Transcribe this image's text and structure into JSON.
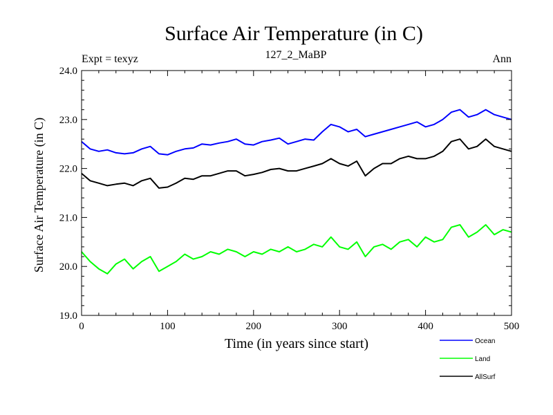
{
  "chart_data": {
    "type": "line",
    "title": "Surface Air Temperature (in C)",
    "subtitle": "127_2_MaBP",
    "left_label": "Expt = texyz",
    "right_label": "Ann",
    "xlabel": "Time (in years since start)",
    "ylabel": "Surface Air Temperature (in C)",
    "xlim": [
      0,
      500
    ],
    "ylim": [
      19.0,
      24.0
    ],
    "x_ticks": [
      0,
      100,
      200,
      300,
      400,
      500
    ],
    "y_ticks": [
      "19.0",
      "20.0",
      "21.0",
      "22.0",
      "23.0",
      "24.0"
    ],
    "grid": false,
    "legend_position": "bottom-right",
    "series": [
      {
        "name": "Ocean",
        "color": "#0000ff",
        "x": [
          0,
          10,
          20,
          30,
          40,
          50,
          60,
          70,
          80,
          90,
          100,
          110,
          120,
          130,
          140,
          150,
          160,
          170,
          180,
          190,
          200,
          210,
          220,
          230,
          240,
          250,
          260,
          270,
          280,
          290,
          300,
          310,
          320,
          330,
          340,
          350,
          360,
          370,
          380,
          390,
          400,
          410,
          420,
          430,
          440,
          450,
          460,
          470,
          480,
          490,
          500
        ],
        "y": [
          22.55,
          22.4,
          22.35,
          22.38,
          22.32,
          22.3,
          22.32,
          22.4,
          22.45,
          22.3,
          22.28,
          22.35,
          22.4,
          22.42,
          22.5,
          22.48,
          22.52,
          22.55,
          22.6,
          22.5,
          22.48,
          22.55,
          22.58,
          22.62,
          22.5,
          22.55,
          22.6,
          22.58,
          22.75,
          22.9,
          22.85,
          22.75,
          22.8,
          22.65,
          22.7,
          22.75,
          22.8,
          22.85,
          22.9,
          22.95,
          22.85,
          22.9,
          23.0,
          23.15,
          23.2,
          23.05,
          23.1,
          23.2,
          23.1,
          23.05,
          23.0
        ]
      },
      {
        "name": "Land",
        "color": "#00ff00",
        "x": [
          0,
          10,
          20,
          30,
          40,
          50,
          60,
          70,
          80,
          90,
          100,
          110,
          120,
          130,
          140,
          150,
          160,
          170,
          180,
          190,
          200,
          210,
          220,
          230,
          240,
          250,
          260,
          270,
          280,
          290,
          300,
          310,
          320,
          330,
          340,
          350,
          360,
          370,
          380,
          390,
          400,
          410,
          420,
          430,
          440,
          450,
          460,
          470,
          480,
          490,
          500
        ],
        "y": [
          20.3,
          20.1,
          19.95,
          19.85,
          20.05,
          20.15,
          19.95,
          20.1,
          20.2,
          19.9,
          20.0,
          20.1,
          20.25,
          20.15,
          20.2,
          20.3,
          20.25,
          20.35,
          20.3,
          20.2,
          20.3,
          20.25,
          20.35,
          20.3,
          20.4,
          20.3,
          20.35,
          20.45,
          20.4,
          20.6,
          20.4,
          20.35,
          20.5,
          20.2,
          20.4,
          20.45,
          20.35,
          20.5,
          20.55,
          20.4,
          20.6,
          20.5,
          20.55,
          20.8,
          20.85,
          20.6,
          20.7,
          20.85,
          20.65,
          20.75,
          20.7
        ]
      },
      {
        "name": "AllSurf",
        "color": "#000000",
        "x": [
          0,
          10,
          20,
          30,
          40,
          50,
          60,
          70,
          80,
          90,
          100,
          110,
          120,
          130,
          140,
          150,
          160,
          170,
          180,
          190,
          200,
          210,
          220,
          230,
          240,
          250,
          260,
          270,
          280,
          290,
          300,
          310,
          320,
          330,
          340,
          350,
          360,
          370,
          380,
          390,
          400,
          410,
          420,
          430,
          440,
          450,
          460,
          470,
          480,
          490,
          500
        ],
        "y": [
          21.9,
          21.75,
          21.7,
          21.65,
          21.68,
          21.7,
          21.65,
          21.75,
          21.8,
          21.6,
          21.62,
          21.7,
          21.8,
          21.78,
          21.85,
          21.85,
          21.9,
          21.95,
          21.95,
          21.85,
          21.88,
          21.92,
          21.98,
          22.0,
          21.95,
          21.95,
          22.0,
          22.05,
          22.1,
          22.2,
          22.1,
          22.05,
          22.15,
          21.85,
          22.0,
          22.1,
          22.1,
          22.2,
          22.25,
          22.2,
          22.2,
          22.25,
          22.35,
          22.55,
          22.6,
          22.4,
          22.45,
          22.6,
          22.45,
          22.4,
          22.35
        ]
      }
    ]
  }
}
